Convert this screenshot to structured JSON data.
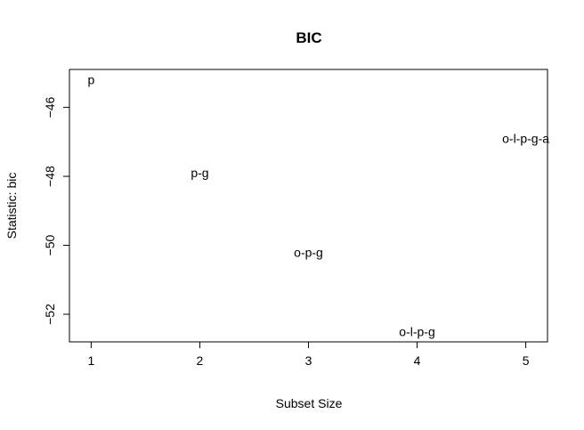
{
  "chart_data": {
    "type": "scatter",
    "title": "BIC",
    "xlabel": "Subset Size",
    "ylabel": "Statistic: bic",
    "xlim": [
      0.8,
      5.2
    ],
    "ylim": [
      -52.8,
      -44.9
    ],
    "x_ticks": [
      1,
      2,
      3,
      4,
      5
    ],
    "y_ticks": [
      -46,
      -48,
      -50,
      -52
    ],
    "grid": false,
    "legend": "none",
    "points": [
      {
        "x": 1,
        "y": -45.2,
        "label": "p"
      },
      {
        "x": 2,
        "y": -47.9,
        "label": "p-g"
      },
      {
        "x": 3,
        "y": -50.2,
        "label": "o-p-g"
      },
      {
        "x": 4,
        "y": -52.5,
        "label": "o-l-p-g"
      },
      {
        "x": 5,
        "y": -46.9,
        "label": "o-l-p-g-a"
      }
    ]
  }
}
